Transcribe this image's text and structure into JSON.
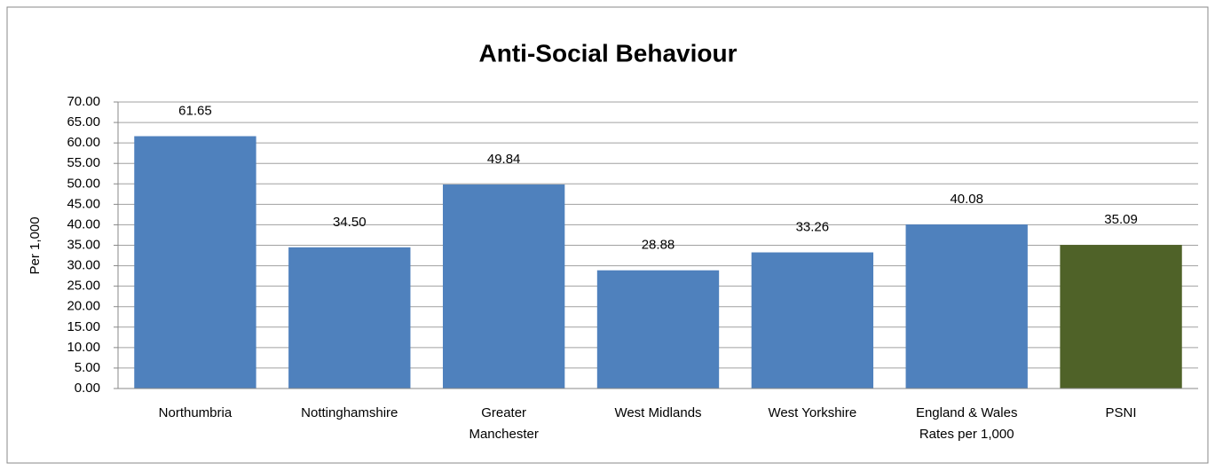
{
  "chart_data": {
    "type": "bar",
    "title": "Anti-Social Behaviour",
    "y_label": "Per 1,000",
    "categories": [
      "Northumbria",
      "Nottinghamshire",
      "Greater Manchester",
      "West Midlands",
      "West Yorkshire",
      "England & Wales Rates per 1,000",
      "PSNI"
    ],
    "values": [
      61.65,
      34.5,
      49.84,
      28.88,
      33.26,
      40.08,
      35.09
    ],
    "value_labels": [
      "61.65",
      "34.50",
      "49.84",
      "28.88",
      "33.26",
      "40.08",
      "35.09"
    ],
    "colors": [
      "#4f81bd",
      "#4f81bd",
      "#4f81bd",
      "#4f81bd",
      "#4f81bd",
      "#4f81bd",
      "#4f6228"
    ],
    "ylim": [
      0,
      70
    ],
    "yticks": [
      {
        "value": 0,
        "label": "0.00"
      },
      {
        "value": 5,
        "label": "5.00"
      },
      {
        "value": 10,
        "label": "10.00"
      },
      {
        "value": 15,
        "label": "15.00"
      },
      {
        "value": 20,
        "label": "20.00"
      },
      {
        "value": 25,
        "label": "25.00"
      },
      {
        "value": 30,
        "label": "30.00"
      },
      {
        "value": 35,
        "label": "35.00"
      },
      {
        "value": 40,
        "label": "40.00"
      },
      {
        "value": 45,
        "label": "45.00"
      },
      {
        "value": 50,
        "label": "50.00"
      },
      {
        "value": 55,
        "label": "55.00"
      },
      {
        "value": 60,
        "label": "60.00"
      },
      {
        "value": 65,
        "label": "65.00"
      },
      {
        "value": 70,
        "label": "70.00"
      }
    ],
    "grid": true
  }
}
